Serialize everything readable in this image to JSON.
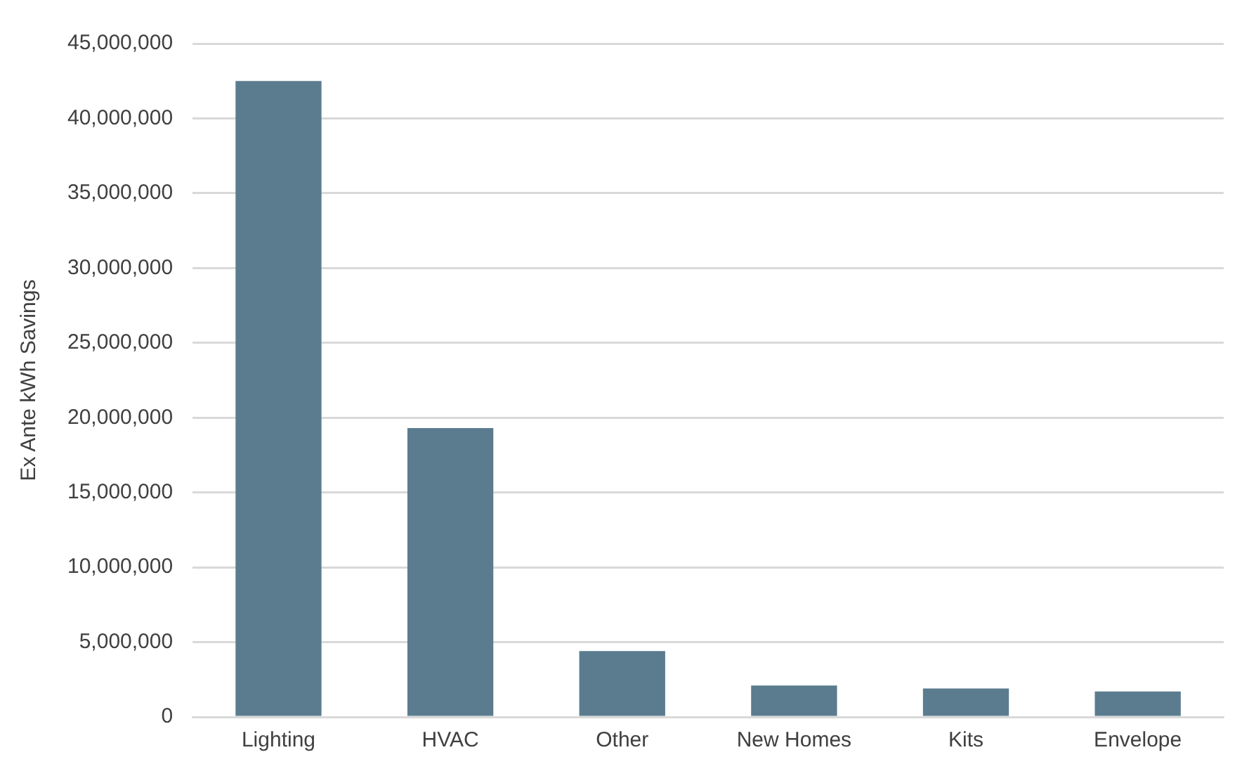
{
  "chart_data": {
    "type": "bar",
    "ylabel": "Ex Ante kWh Savings",
    "categories": [
      "Lighting",
      "HVAC",
      "Other",
      "New Homes",
      "Kits",
      "Envelope"
    ],
    "values": [
      42500000,
      19300000,
      4400000,
      2100000,
      1900000,
      1700000
    ],
    "color": "#5b7c8f",
    "ylim": [
      0,
      45000000
    ],
    "yticks": [
      0,
      {
        "value": 5000000,
        "label": "5,000,000"
      },
      {
        "value": 10000000,
        "label": "10,000,000"
      },
      {
        "value": 15000000,
        "label": "15,000,000"
      },
      {
        "value": 20000000,
        "label": "20,000,000"
      },
      {
        "value": 25000000,
        "label": "25,000,000"
      },
      {
        "value": 30000000,
        "label": "30,000,000"
      },
      {
        "value": 35000000,
        "label": "35,000,000"
      },
      {
        "value": 40000000,
        "label": "40,000,000"
      },
      {
        "value": 45000000,
        "label": "45,000,000"
      }
    ],
    "grid": "y",
    "legend": false
  }
}
